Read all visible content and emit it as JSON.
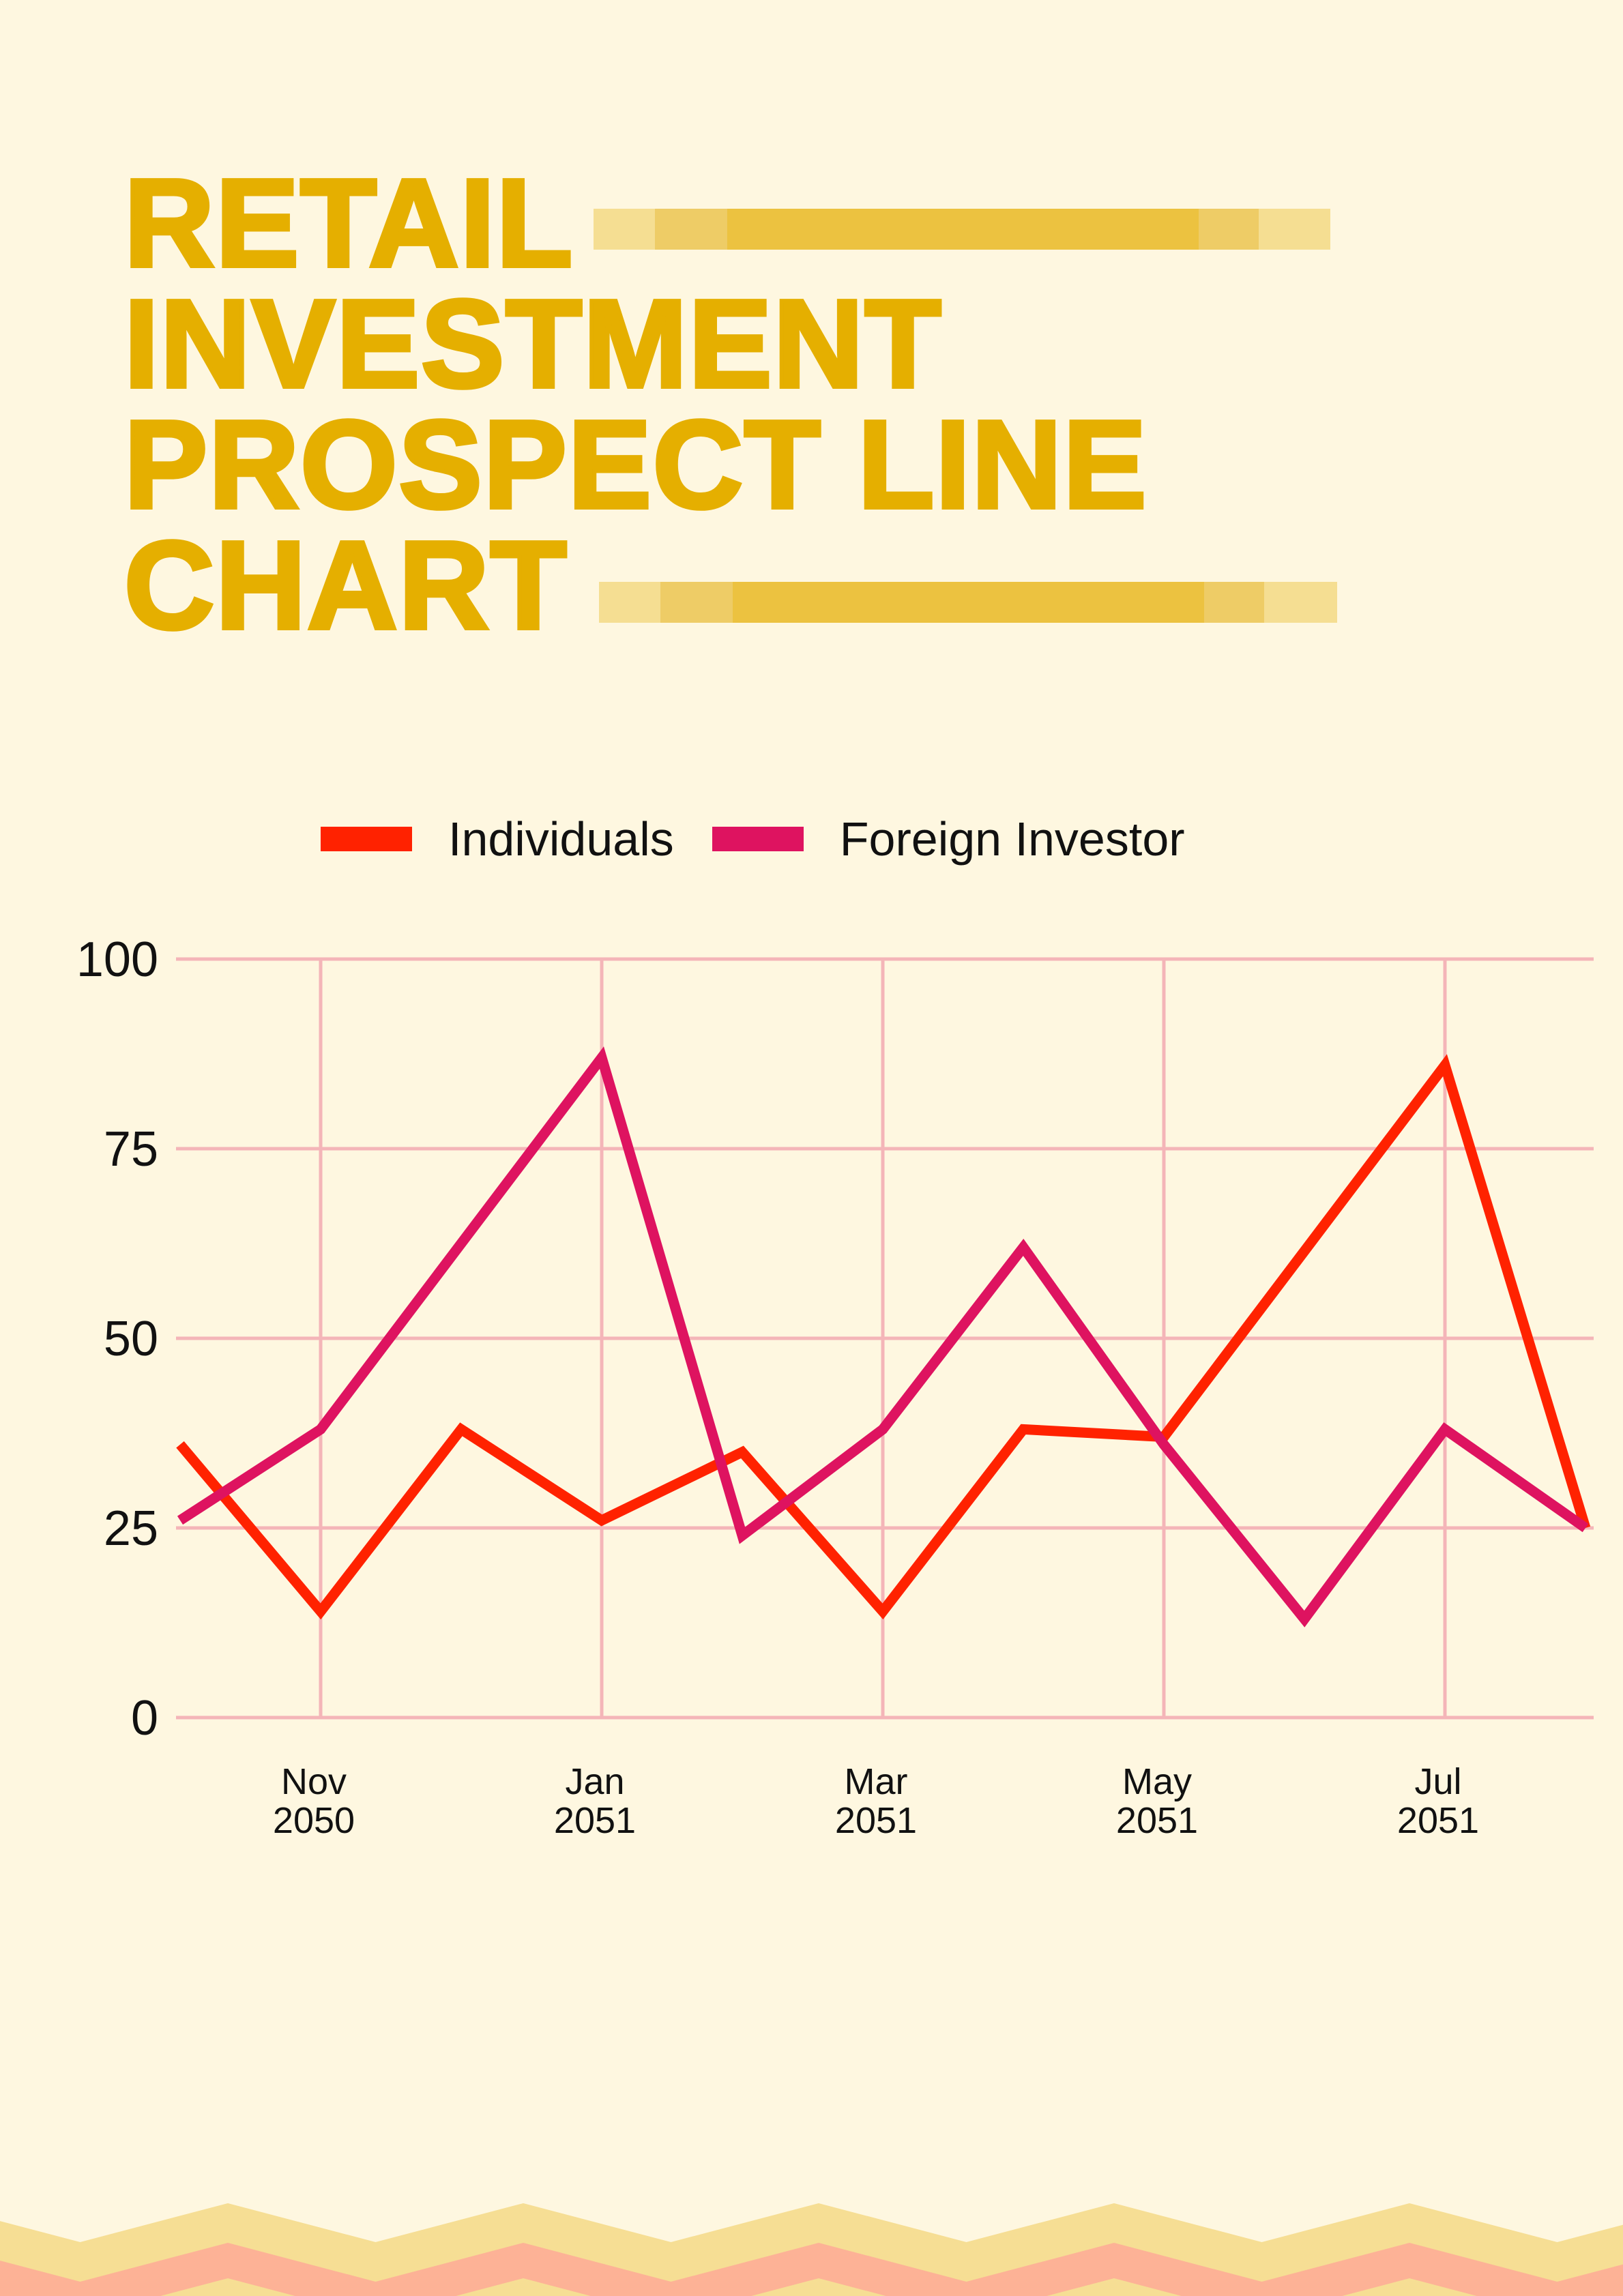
{
  "title_lines": [
    "RETAIL",
    "INVESTMENT",
    "PROSPECT LINE",
    "CHART"
  ],
  "colors": {
    "background": "#FEF7E0",
    "title": "#E5AF00",
    "grid": "#F4B5B8",
    "bar_light": "#F5DE92",
    "bar_mid": "#EECC66",
    "bar_dark": "#ECC240",
    "zigzag_yellow": "#F6DE94",
    "zigzag_salmon": "#FDB296"
  },
  "chart_data": {
    "type": "line",
    "title": "RETAIL INVESTMENT PROSPECT LINE CHART",
    "xlabel": "",
    "ylabel": "",
    "ylim": [
      0,
      100
    ],
    "yticks": [
      "0",
      "25",
      "50",
      "75",
      "100"
    ],
    "xticks": [
      {
        "month": "2050-11",
        "line1": "Nov",
        "line2": "2050"
      },
      {
        "month": "2051-01",
        "line1": "Jan",
        "line2": "2051"
      },
      {
        "month": "2051-03",
        "line1": "Mar",
        "line2": "2051"
      },
      {
        "month": "2051-05",
        "line1": "May",
        "line2": "2051"
      },
      {
        "month": "2051-07",
        "line1": "Jul",
        "line2": "2051"
      }
    ],
    "grid": true,
    "legend_position": "top",
    "series": [
      {
        "name": "Individuals",
        "color": "#FF2200",
        "x": [
          "2050-10",
          "2050-11",
          "2050-12",
          "2051-01",
          "2051-02",
          "2051-03",
          "2051-04",
          "2051-05",
          "2051-07",
          "2051-08"
        ],
        "values": [
          36,
          14,
          38,
          26,
          35,
          14,
          38,
          37,
          86,
          25
        ]
      },
      {
        "name": "Foreign Investor",
        "color": "#DE1360",
        "x": [
          "2050-10",
          "2050-11",
          "2051-01",
          "2051-02",
          "2051-03",
          "2051-04",
          "2051-05",
          "2051-06",
          "2051-07",
          "2051-08"
        ],
        "values": [
          26,
          38,
          87,
          24,
          38,
          62,
          36,
          13,
          38,
          25
        ]
      }
    ]
  }
}
